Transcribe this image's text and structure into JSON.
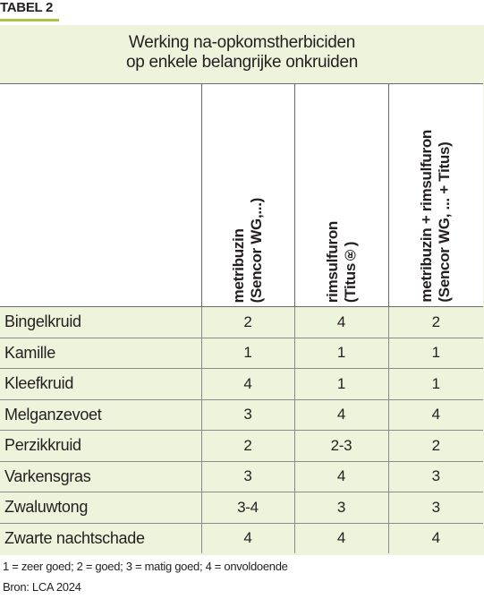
{
  "label": "TABEL 2",
  "colors": {
    "accent": "#a8c545",
    "panel": "#eef3db",
    "rule": "#6b6b6b"
  },
  "title": {
    "line1": "Werking na-opkomstherbiciden",
    "line2": "op enkele belangrijke onkruiden"
  },
  "columns": [
    {
      "line1": "metribuzin",
      "line2": "(Sencor WG,...)"
    },
    {
      "line1": "rimsulfuron",
      "line2": "(Titus®)"
    },
    {
      "line1": "metribuzin + rimsulfuron",
      "line2": "(Sencor WG, ... + Titus)"
    }
  ],
  "rows": [
    {
      "weed": "Bingelkruid",
      "values": [
        "2",
        "4",
        "2"
      ]
    },
    {
      "weed": "Kamille",
      "values": [
        "1",
        "1",
        "1"
      ]
    },
    {
      "weed": "Kleefkruid",
      "values": [
        "4",
        "1",
        "1"
      ]
    },
    {
      "weed": "Melganzevoet",
      "values": [
        "3",
        "4",
        "4"
      ]
    },
    {
      "weed": "Perzikkruid",
      "values": [
        "2",
        "2-3",
        "2"
      ]
    },
    {
      "weed": "Varkensgras",
      "values": [
        "3",
        "4",
        "3"
      ]
    },
    {
      "weed": "Zwaluwtong",
      "values": [
        "3-4",
        "3",
        "3"
      ]
    },
    {
      "weed": "Zwarte nachtschade",
      "values": [
        "4",
        "4",
        "4"
      ]
    }
  ],
  "legend": "1 = zeer goed; 2 = goed; 3 = matig goed; 4 = onvoldoende",
  "source": "Bron: LCA 2024"
}
